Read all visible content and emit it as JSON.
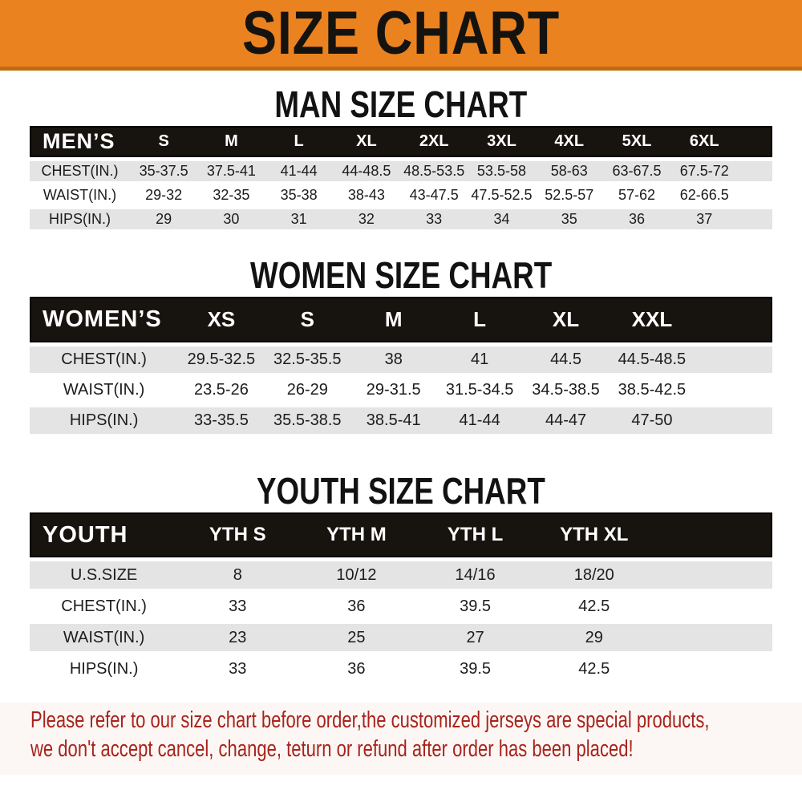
{
  "banner": {
    "title": "SIZE CHART"
  },
  "sections": {
    "men": {
      "heading": "MAN SIZE CHART",
      "table": {
        "header_label": "MEN’S",
        "columns": [
          "S",
          "M",
          "L",
          "XL",
          "2XL",
          "3XL",
          "4XL",
          "5XL",
          "6XL"
        ],
        "rows": [
          {
            "label": "CHEST(IN.)",
            "values": [
              "35-37.5",
              "37.5-41",
              "41-44",
              "44-48.5",
              "48.5-53.5",
              "53.5-58",
              "58-63",
              "63-67.5",
              "67.5-72"
            ]
          },
          {
            "label": "WAIST(IN.)",
            "values": [
              "29-32",
              "32-35",
              "35-38",
              "38-43",
              "43-47.5",
              "47.5-52.5",
              "52.5-57",
              "57-62",
              "62-66.5"
            ]
          },
          {
            "label": "HIPS(IN.)",
            "values": [
              "29",
              "30",
              "31",
              "32",
              "33",
              "34",
              "35",
              "36",
              "37"
            ]
          }
        ]
      }
    },
    "women": {
      "heading": "WOMEN SIZE CHART",
      "table": {
        "header_label": "WOMEN’S",
        "columns": [
          "XS",
          "S",
          "M",
          "L",
          "XL",
          "XXL"
        ],
        "rows": [
          {
            "label": "CHEST(IN.)",
            "values": [
              "29.5-32.5",
              "32.5-35.5",
              "38",
              "41",
              "44.5",
              "44.5-48.5"
            ]
          },
          {
            "label": "WAIST(IN.)",
            "values": [
              "23.5-26",
              "26-29",
              "29-31.5",
              "31.5-34.5",
              "34.5-38.5",
              "38.5-42.5"
            ]
          },
          {
            "label": "HIPS(IN.)",
            "values": [
              "33-35.5",
              "35.5-38.5",
              "38.5-41",
              "41-44",
              "44-47",
              "47-50"
            ]
          }
        ]
      }
    },
    "youth": {
      "heading": "YOUTH SIZE CHART",
      "table": {
        "header_label": "YOUTH",
        "columns": [
          "YTH S",
          "YTH M",
          "YTH L",
          "YTH XL"
        ],
        "rows": [
          {
            "label": "U.S.SIZE",
            "values": [
              "8",
              "10/12",
              "14/16",
              "18/20"
            ]
          },
          {
            "label": "CHEST(IN.)",
            "values": [
              "33",
              "36",
              "39.5",
              "42.5"
            ]
          },
          {
            "label": "WAIST(IN.)",
            "values": [
              "23",
              "25",
              "27",
              "29"
            ]
          },
          {
            "label": "HIPS(IN.)",
            "values": [
              "33",
              "36",
              "39.5",
              "42.5"
            ]
          }
        ]
      }
    }
  },
  "footer": {
    "line1": "Please refer to our size chart before order,the customized jerseys are special products,",
    "line2": "we don't accept cancel, change, teturn or refund after order has been placed!"
  },
  "colors": {
    "banner_bg": "#EB8220",
    "banner_border": "#C06A10",
    "header_bar": "#17130F",
    "row_alt": "#E4E4E4",
    "footer_text": "#A8231C"
  }
}
